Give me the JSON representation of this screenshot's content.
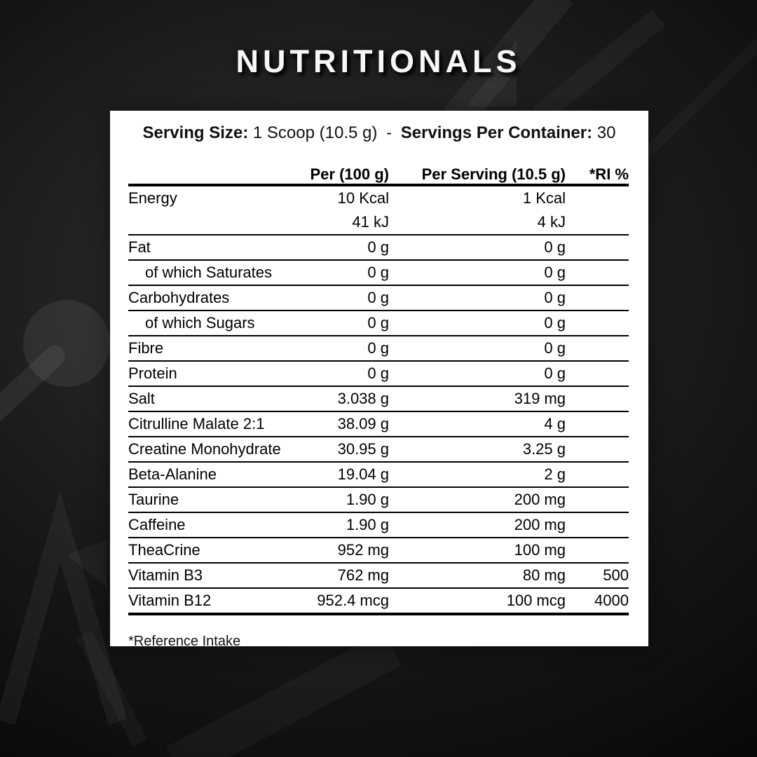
{
  "page": {
    "title": "NUTRITIONALS"
  },
  "colors": {
    "background_dark": "#0a0a0a",
    "background_mid": "#2e2e2e",
    "card_background": "#ffffff",
    "text": "#000000",
    "title_color": "#f7f7f7",
    "divider": "#000000"
  },
  "serving_line": {
    "serving_size_label": "Serving Size:",
    "serving_size_value": "1 Scoop (10.5 g)",
    "separator": "-",
    "servings_label": "Servings Per Container:",
    "servings_value": "30"
  },
  "table": {
    "columns": [
      "Per (100 g)",
      "Per Serving (10.5 g)",
      "*RI %"
    ],
    "rows": [
      {
        "label": "Energy",
        "per_100g": "10 Kcal",
        "per_serving": "1 Kcal",
        "ri": "",
        "no_divider_below": true
      },
      {
        "label": "",
        "per_100g": "41 kJ",
        "per_serving": "4 kJ",
        "ri": ""
      },
      {
        "label": "Fat",
        "per_100g": "0 g",
        "per_serving": "0 g",
        "ri": ""
      },
      {
        "label": "of which Saturates",
        "indent": true,
        "per_100g": "0 g",
        "per_serving": "0 g",
        "ri": ""
      },
      {
        "label": "Carbohydrates",
        "per_100g": "0 g",
        "per_serving": "0 g",
        "ri": ""
      },
      {
        "label": "of which Sugars",
        "indent": true,
        "per_100g": "0 g",
        "per_serving": "0 g",
        "ri": ""
      },
      {
        "label": "Fibre",
        "per_100g": "0 g",
        "per_serving": "0 g",
        "ri": ""
      },
      {
        "label": "Protein",
        "per_100g": "0 g",
        "per_serving": "0 g",
        "ri": ""
      },
      {
        "label": "Salt",
        "per_100g": "3.038 g",
        "per_serving": "319 mg",
        "ri": ""
      },
      {
        "label": "Citrulline Malate 2:1",
        "per_100g": "38.09 g",
        "per_serving": "4 g",
        "ri": ""
      },
      {
        "label": "Creatine Monohydrate",
        "per_100g": "30.95 g",
        "per_serving": "3.25 g",
        "ri": ""
      },
      {
        "label": "Beta-Alanine",
        "per_100g": "19.04 g",
        "per_serving": "2 g",
        "ri": ""
      },
      {
        "label": "Taurine",
        "per_100g": "1.90 g",
        "per_serving": "200 mg",
        "ri": ""
      },
      {
        "label": "Caffeine",
        "per_100g": "1.90 g",
        "per_serving": "200 mg",
        "ri": ""
      },
      {
        "label": "TheaCrine",
        "per_100g": "952 mg",
        "per_serving": "100 mg",
        "ri": ""
      },
      {
        "label": "Vitamin B3",
        "per_100g": "762 mg",
        "per_serving": "80 mg",
        "ri": "500"
      },
      {
        "label": "Vitamin B12",
        "per_100g": "952.4 mcg",
        "per_serving": "100 mcg",
        "ri": "4000"
      }
    ],
    "footnote": "*Reference Intake"
  }
}
